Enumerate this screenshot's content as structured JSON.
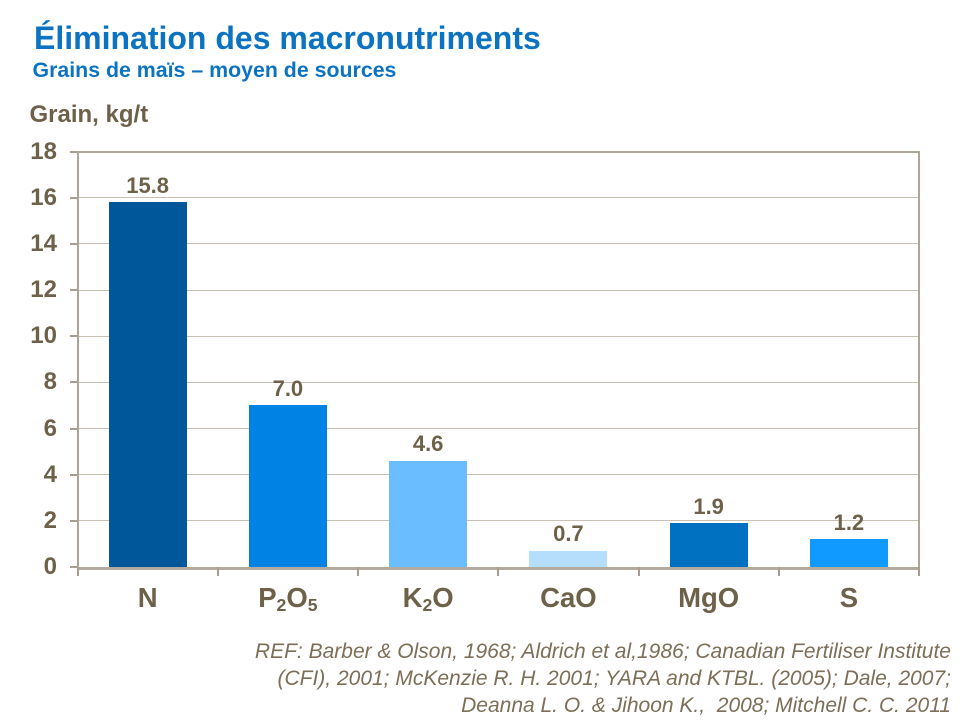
{
  "slide": {
    "title": "Élimination des macronutriments",
    "subtitle": "Grains de maïs – moyen de sources",
    "reference_lines": [
      "REF: Barber & Olson, 1968; Aldrich et al,1986; Canadian Fertiliser Institute",
      "(CFI), 2001; McKenzie R. H. 2001; YARA and KTBL. (2005); Dale, 2007;",
      "Deanna L. O. & Jihoon K.,  2008; Mitchell C. C. 2011"
    ]
  },
  "colors": {
    "title_blue": "#0C73C2",
    "label_brown": "#6E6149",
    "ref_brown": "#7C6E57",
    "gridline": "#C9C0B2",
    "plot_border": "#AEA498",
    "axis_line": "#B3AA9E",
    "tick": "#A79D90",
    "background": "#FFFFFF"
  },
  "chart_data": {
    "type": "bar",
    "title": "",
    "ylabel": "Grain, kg/t",
    "xlabel": "",
    "categories": [
      "N",
      "P₂O₅",
      "K₂O",
      "CaO",
      "MgO",
      "S"
    ],
    "category_segments": [
      [
        {
          "t": "N"
        }
      ],
      [
        {
          "t": "P"
        },
        {
          "t": "2",
          "sub": true
        },
        {
          "t": "O"
        },
        {
          "t": "5",
          "sub": true
        }
      ],
      [
        {
          "t": "K"
        },
        {
          "t": "2",
          "sub": true
        },
        {
          "t": "O"
        }
      ],
      [
        {
          "t": "CaO"
        }
      ],
      [
        {
          "t": "MgO"
        }
      ],
      [
        {
          "t": "S"
        }
      ]
    ],
    "values": [
      15.8,
      7.0,
      4.6,
      0.7,
      1.9,
      1.2
    ],
    "value_labels": [
      "15.8",
      "7.0",
      "4.6",
      "0.7",
      "1.9",
      "1.2"
    ],
    "bar_colors": [
      "#00589B",
      "#0082E5",
      "#6ABEFF",
      "#B5DEFC",
      "#0070C0",
      "#1099FF"
    ],
    "ylim": [
      0,
      18
    ],
    "ytick_step": 2,
    "grid": true,
    "legend": false
  }
}
